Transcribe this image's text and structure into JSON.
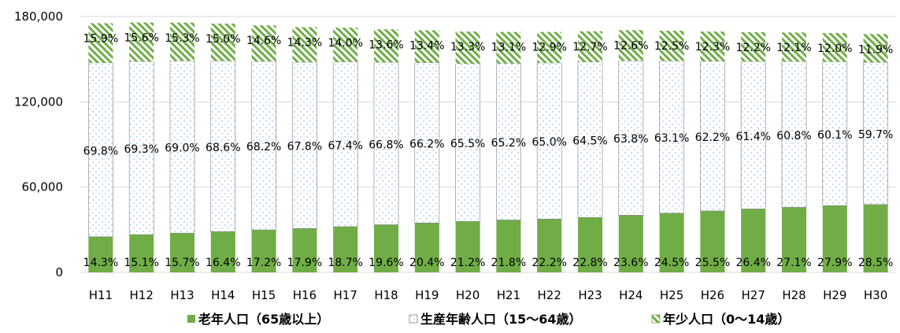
{
  "chart_data": {
    "type": "bar",
    "stacked": true,
    "categories": [
      "H11",
      "H12",
      "H13",
      "H14",
      "H15",
      "H16",
      "H17",
      "H18",
      "H19",
      "H20",
      "H21",
      "H22",
      "H23",
      "H24",
      "H25",
      "H26",
      "H27",
      "H28",
      "H29",
      "H30"
    ],
    "totals": [
      175300,
      175800,
      175700,
      175000,
      173800,
      172500,
      172000,
      171000,
      170300,
      169400,
      169000,
      169000,
      169600,
      170400,
      169800,
      169400,
      169000,
      168800,
      168400,
      167500
    ],
    "series": [
      {
        "name": "老年人口（65歳以上）",
        "color": "#70AD47",
        "pattern": "solid",
        "percent_labels": [
          "14.3%",
          "15.1%",
          "15.7%",
          "16.4%",
          "17.2%",
          "17.9%",
          "18.7%",
          "19.6%",
          "20.4%",
          "21.2%",
          "21.8%",
          "22.2%",
          "22.8%",
          "23.6%",
          "24.5%",
          "25.5%",
          "26.4%",
          "27.1%",
          "27.9%",
          "28.5%"
        ],
        "values": [
          25068,
          26546,
          27585,
          28700,
          29894,
          30878,
          32164,
          33516,
          34741,
          35913,
          36842,
          37518,
          38669,
          40214,
          41601,
          43197,
          44616,
          45745,
          46984,
          47738
        ]
      },
      {
        "name": "生産年齢人口（15～64歳）",
        "color": "#9DC3E6",
        "pattern": "dots",
        "percent_labels": [
          "69.8%",
          "69.3%",
          "69.0%",
          "68.6%",
          "68.2%",
          "67.8%",
          "67.4%",
          "66.8%",
          "66.2%",
          "65.5%",
          "65.2%",
          "65.0%",
          "64.5%",
          "63.8%",
          "63.1%",
          "62.2%",
          "61.4%",
          "60.8%",
          "60.1%",
          "59.7%"
        ],
        "values": [
          122359,
          121829,
          121233,
          120050,
          118532,
          116955,
          115928,
          114228,
          112739,
          110957,
          110188,
          109850,
          109392,
          108715,
          107144,
          105367,
          103766,
          102630,
          101208,
          99998
        ]
      },
      {
        "name": "年少人口（0～14歳）",
        "color": "#70AD47",
        "pattern": "stripes",
        "percent_labels": [
          "15.9%",
          "15.6%",
          "15.3%",
          "15.0%",
          "14.6%",
          "14.3%",
          "14.0%",
          "13.6%",
          "13.4%",
          "13.3%",
          "13.1%",
          "12.9%",
          "12.7%",
          "12.6%",
          "12.5%",
          "12.3%",
          "12.2%",
          "12.1%",
          "12.0%",
          "11.9%"
        ],
        "values": [
          27873,
          27425,
          26882,
          26250,
          25375,
          24668,
          24080,
          23256,
          22820,
          22530,
          22139,
          21801,
          21539,
          21470,
          21225,
          20836,
          20618,
          20425,
          20208,
          19933
        ]
      }
    ],
    "y_axis": {
      "min": 0,
      "max": 180000,
      "ticks": [
        "0",
        "60,000",
        "120,000",
        "180,000"
      ],
      "tick_values": [
        0,
        60000,
        120000,
        180000
      ]
    },
    "grid": true,
    "legend_position": "bottom"
  }
}
